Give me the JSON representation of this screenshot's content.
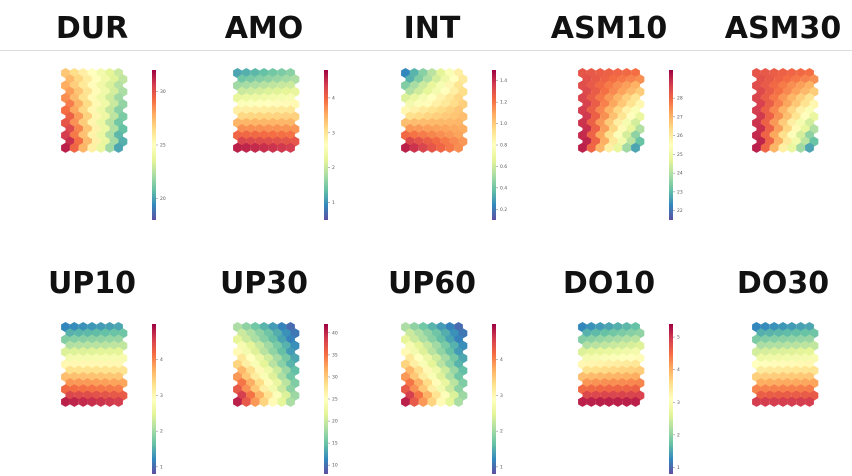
{
  "chart_data": [
    {
      "type": "heatmap",
      "title": "DUR",
      "colormap": "Spectral_r",
      "grid": {
        "cols": 7,
        "rows": 13
      },
      "pattern": "corners",
      "corners": [
        0.65,
        0.35,
        0.95,
        0.15
      ],
      "colorbar": {
        "range": [
          18,
          32
        ],
        "ticks": [
          "30",
          "25",
          "20"
        ]
      }
    },
    {
      "type": "heatmap",
      "title": "AMO",
      "colormap": "Spectral_r",
      "grid": {
        "cols": 7,
        "rows": 13
      },
      "pattern": "corners",
      "corners": [
        0.15,
        0.25,
        0.95,
        0.9
      ],
      "colorbar": {
        "range": [
          0.5,
          4.8
        ],
        "ticks": [
          "4",
          "3",
          "2",
          "1"
        ]
      }
    },
    {
      "type": "heatmap",
      "title": "INT",
      "colormap": "Spectral_r",
      "grid": {
        "cols": 7,
        "rows": 13
      },
      "pattern": "corners",
      "corners": [
        0.1,
        0.55,
        0.95,
        0.75
      ],
      "colorbar": {
        "range": [
          0.1,
          1.5
        ],
        "ticks": [
          "1.4",
          "1.2",
          "1.0",
          "0.8",
          "0.6",
          "0.4",
          "0.2"
        ]
      }
    },
    {
      "type": "heatmap",
      "title": "ASM10",
      "colormap": "Spectral_r",
      "grid": {
        "cols": 7,
        "rows": 13
      },
      "pattern": "corners",
      "corners": [
        0.85,
        0.8,
        0.95,
        0.15
      ],
      "colorbar": {
        "range": [
          21.5,
          29.5
        ],
        "ticks": [
          "28",
          "27",
          "26",
          "25",
          "24",
          "23",
          "22"
        ]
      }
    },
    {
      "type": "heatmap",
      "title": "ASM30",
      "colormap": "Spectral_r",
      "grid": {
        "cols": 7,
        "rows": 13
      },
      "pattern": "corners",
      "corners": [
        0.85,
        0.8,
        0.95,
        0.15
      ],
      "colorbar": {
        "range": [
          21.5,
          29.5
        ],
        "ticks": []
      }
    },
    {
      "type": "heatmap",
      "title": "UP10",
      "colormap": "Spectral_r",
      "grid": {
        "cols": 7,
        "rows": 13
      },
      "pattern": "corners",
      "corners": [
        0.1,
        0.15,
        0.95,
        0.9
      ],
      "colorbar": {
        "range": [
          0.8,
          5
        ],
        "ticks": [
          "4",
          "3",
          "2",
          "1"
        ]
      }
    },
    {
      "type": "heatmap",
      "title": "UP30",
      "colormap": "Spectral_r",
      "grid": {
        "cols": 7,
        "rows": 13
      },
      "pattern": "corners",
      "corners": [
        0.3,
        0.05,
        0.95,
        0.3
      ],
      "colorbar": {
        "range": [
          8,
          42
        ],
        "ticks": [
          "40",
          "35",
          "30",
          "25",
          "20",
          "15",
          "10"
        ]
      }
    },
    {
      "type": "heatmap",
      "title": "UP60",
      "colormap": "Spectral_r",
      "grid": {
        "cols": 7,
        "rows": 13
      },
      "pattern": "corners",
      "corners": [
        0.3,
        0.05,
        0.95,
        0.3
      ],
      "colorbar": {
        "range": [
          0.8,
          5
        ],
        "ticks": [
          "4",
          "3",
          "2",
          "1"
        ]
      }
    },
    {
      "type": "heatmap",
      "title": "DO10",
      "colormap": "Spectral_r",
      "grid": {
        "cols": 7,
        "rows": 13
      },
      "pattern": "corners",
      "corners": [
        0.1,
        0.2,
        0.95,
        0.95
      ],
      "colorbar": {
        "range": [
          0.8,
          5.4
        ],
        "ticks": [
          "5",
          "4",
          "3",
          "2",
          "1"
        ]
      }
    },
    {
      "type": "heatmap",
      "title": "DO30",
      "colormap": "Spectral_r",
      "grid": {
        "cols": 7,
        "rows": 13
      },
      "pattern": "corners",
      "corners": [
        0.1,
        0.15,
        0.9,
        0.9
      ],
      "colorbar": {
        "range": [
          0.8,
          5
        ],
        "ticks": []
      }
    }
  ]
}
